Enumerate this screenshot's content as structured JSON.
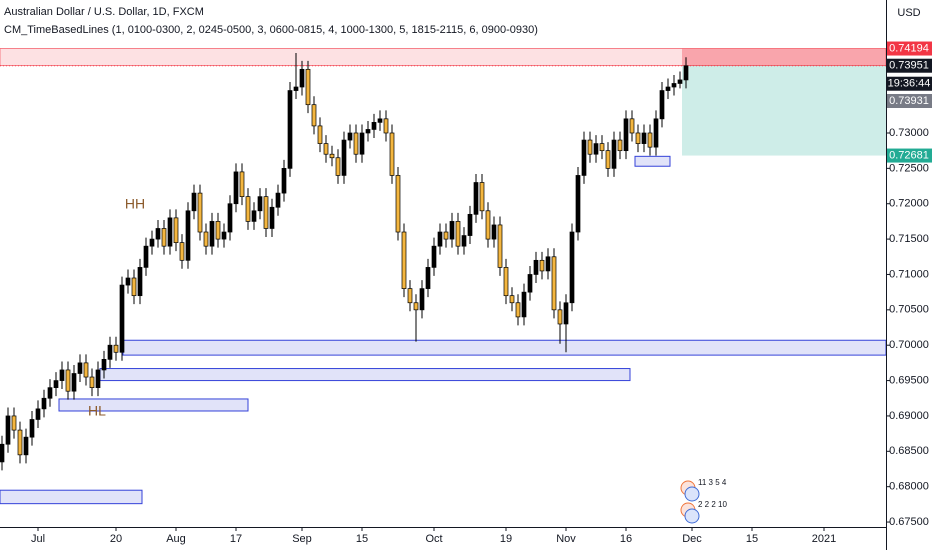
{
  "chart_data": {
    "type": "candlestick",
    "title": "Australian Dollar / U.S. Dollar, 1D, FXCM",
    "subtitle": "CM_TimeBasedLines (1, 0100-0300, 2, 0245-0500, 3, 0600-0815, 4, 1000-1300, 5, 1815-2115, 6, 0900-0930)",
    "currency": "USD",
    "categories": [
      null,
      null,
      null,
      null,
      null,
      null,
      "Jul",
      null,
      null,
      null,
      null,
      null,
      null,
      null,
      null,
      null,
      null,
      null,
      null,
      "20",
      null,
      null,
      null,
      null,
      null,
      null,
      null,
      null,
      null,
      "Aug",
      null,
      null,
      null,
      null,
      null,
      null,
      null,
      null,
      null,
      "17",
      null,
      null,
      null,
      null,
      null,
      null,
      null,
      null,
      null,
      null,
      "Sep",
      null,
      null,
      null,
      null,
      null,
      null,
      null,
      null,
      null,
      "15",
      null,
      null,
      null,
      null,
      null,
      null,
      null,
      null,
      null,
      null,
      null,
      "Oct",
      null,
      null,
      null,
      null,
      null,
      null,
      null,
      null,
      null,
      null,
      null,
      "19",
      null,
      null,
      null,
      null,
      null,
      null,
      null,
      null,
      null,
      "Nov",
      null,
      null,
      null,
      null,
      null,
      null,
      null,
      null,
      null,
      "16",
      null,
      null,
      null,
      null,
      null,
      null,
      null,
      null,
      null,
      null,
      "Dec",
      null,
      null,
      null,
      null,
      null,
      null,
      null,
      null,
      null,
      "15",
      null,
      null,
      null,
      null,
      null,
      null,
      null,
      null,
      null,
      null,
      null,
      "2021",
      null,
      null
    ],
    "open": [
      0.6835,
      0.686,
      0.69,
      0.688,
      0.6845,
      0.687,
      0.6895,
      0.691,
      0.6925,
      0.694,
      0.695,
      0.6965,
      0.6935,
      0.696,
      0.6975,
      0.6955,
      0.694,
      0.6965,
      0.698,
      0.7,
      0.699,
      0.7085,
      0.7095,
      0.707,
      0.711,
      0.714,
      0.715,
      0.7165,
      0.714,
      0.718,
      0.7145,
      0.712,
      0.719,
      0.7215,
      0.716,
      0.714,
      0.7175,
      0.715,
      0.716,
      0.72,
      0.7245,
      0.721,
      0.7175,
      0.719,
      0.721,
      0.7165,
      0.7195,
      0.7215,
      0.725,
      0.736,
      0.7365,
      0.739,
      0.734,
      0.731,
      0.7285,
      0.727,
      0.7265,
      0.724,
      0.729,
      0.73,
      0.727,
      0.73,
      0.7305,
      0.7315,
      0.732,
      0.73,
      0.724,
      0.716,
      0.708,
      0.706,
      0.705,
      0.708,
      0.711,
      0.714,
      0.716,
      0.715,
      0.7175,
      0.714,
      0.7155,
      0.7185,
      0.723,
      0.719,
      0.715,
      0.717,
      0.711,
      0.707,
      0.706,
      0.704,
      0.7075,
      0.71,
      0.712,
      0.7105,
      0.7125,
      0.705,
      0.703,
      0.706,
      0.716,
      0.724,
      0.729,
      0.727,
      0.7285,
      0.7275,
      0.725,
      0.729,
      0.7275,
      0.732,
      0.73,
      0.7285,
      0.73,
      0.728,
      0.732,
      0.736,
      0.7365,
      0.737,
      0.7375,
      null,
      null,
      null,
      null,
      null,
      null,
      null,
      null,
      null,
      null,
      null,
      null,
      null,
      null,
      null,
      null,
      null,
      null,
      null,
      null,
      null,
      null,
      null,
      null,
      null
    ],
    "high": [
      0.6872,
      0.6912,
      0.6912,
      0.6892,
      0.6882,
      0.6907,
      0.6922,
      0.6937,
      0.6952,
      0.6962,
      0.6977,
      0.6977,
      0.6972,
      0.6987,
      0.6987,
      0.6967,
      0.6977,
      0.6992,
      0.7012,
      0.7012,
      0.7097,
      0.7107,
      0.7107,
      0.7122,
      0.7152,
      0.7162,
      0.7177,
      0.7177,
      0.7192,
      0.7192,
      0.7157,
      0.7202,
      0.7227,
      0.7227,
      0.7172,
      0.7187,
      0.7187,
      0.7172,
      0.7212,
      0.7257,
      0.7257,
      0.7222,
      0.7202,
      0.7222,
      0.7222,
      0.7207,
      0.7227,
      0.7262,
      0.7372,
      0.7413,
      0.7402,
      0.7402,
      0.7352,
      0.7322,
      0.7297,
      0.7282,
      0.7277,
      0.7302,
      0.7312,
      0.7312,
      0.7312,
      0.7317,
      0.7327,
      0.7332,
      0.7332,
      0.7312,
      0.7252,
      0.7172,
      0.7092,
      0.7072,
      0.7092,
      0.7122,
      0.7152,
      0.7172,
      0.7172,
      0.7187,
      0.7187,
      0.7167,
      0.7197,
      0.7242,
      0.7242,
      0.7202,
      0.7182,
      0.7182,
      0.7122,
      0.7082,
      0.7072,
      0.7087,
      0.7112,
      0.7132,
      0.7132,
      0.7137,
      0.7137,
      0.7062,
      0.7072,
      0.7172,
      0.7252,
      0.7302,
      0.7302,
      0.7297,
      0.7297,
      0.7287,
      0.7302,
      0.7302,
      0.7332,
      0.7332,
      0.7312,
      0.7312,
      0.7312,
      0.7332,
      0.7372,
      0.7377,
      0.7382,
      0.7387,
      0.7407,
      null,
      null,
      null,
      null,
      null,
      null,
      null,
      null,
      null,
      null,
      null,
      null,
      null,
      null,
      null,
      null,
      null,
      null,
      null,
      null,
      null,
      null,
      null,
      null,
      null
    ],
    "low": [
      0.6823,
      0.6848,
      0.6868,
      0.6833,
      0.6833,
      0.6858,
      0.6883,
      0.6898,
      0.6913,
      0.6928,
      0.6938,
      0.6923,
      0.6923,
      0.6948,
      0.6943,
      0.6928,
      0.6928,
      0.6953,
      0.6968,
      0.6978,
      0.6978,
      0.7073,
      0.7058,
      0.7058,
      0.7098,
      0.7128,
      0.7138,
      0.7128,
      0.7128,
      0.7133,
      0.7108,
      0.7108,
      0.7178,
      0.7148,
      0.7128,
      0.7128,
      0.7138,
      0.7138,
      0.7148,
      0.7188,
      0.7198,
      0.7163,
      0.7163,
      0.7178,
      0.7153,
      0.7153,
      0.7183,
      0.7203,
      0.7238,
      0.7348,
      0.7353,
      0.7328,
      0.7298,
      0.7273,
      0.7258,
      0.7253,
      0.7228,
      0.7228,
      0.7278,
      0.7258,
      0.7258,
      0.7288,
      0.7293,
      0.7303,
      0.7288,
      0.7228,
      0.7148,
      0.7068,
      0.7048,
      0.7005,
      0.7038,
      0.7068,
      0.7098,
      0.7128,
      0.7138,
      0.7138,
      0.7128,
      0.7128,
      0.7143,
      0.7173,
      0.7178,
      0.7138,
      0.7138,
      0.7098,
      0.7058,
      0.7048,
      0.7028,
      0.7028,
      0.7063,
      0.7088,
      0.7093,
      0.7093,
      0.7038,
      0.7002,
      0.699,
      0.7048,
      0.7148,
      0.7228,
      0.7258,
      0.7258,
      0.7263,
      0.7238,
      0.7238,
      0.7263,
      0.7263,
      0.7288,
      0.7273,
      0.7273,
      0.7268,
      0.7268,
      0.7308,
      0.7348,
      0.7353,
      0.7363,
      0.7363,
      null,
      null,
      null,
      null,
      null,
      null,
      null,
      null,
      null,
      null,
      null,
      null,
      null,
      null,
      null,
      null,
      null,
      null,
      null,
      null,
      null,
      null,
      null,
      null,
      null
    ],
    "close": [
      0.686,
      0.69,
      0.688,
      0.6845,
      0.687,
      0.6895,
      0.691,
      0.6925,
      0.694,
      0.695,
      0.6965,
      0.6935,
      0.696,
      0.6975,
      0.6955,
      0.694,
      0.6965,
      0.698,
      0.7,
      0.699,
      0.7085,
      0.7095,
      0.707,
      0.711,
      0.714,
      0.715,
      0.7165,
      0.714,
      0.718,
      0.7145,
      0.712,
      0.719,
      0.7215,
      0.716,
      0.714,
      0.7175,
      0.715,
      0.716,
      0.72,
      0.7245,
      0.721,
      0.7175,
      0.719,
      0.721,
      0.7165,
      0.7195,
      0.7215,
      0.725,
      0.736,
      0.7365,
      0.739,
      0.734,
      0.731,
      0.7285,
      0.727,
      0.7265,
      0.724,
      0.729,
      0.73,
      0.727,
      0.73,
      0.7305,
      0.7315,
      0.732,
      0.73,
      0.724,
      0.716,
      0.708,
      0.706,
      0.705,
      0.708,
      0.711,
      0.714,
      0.716,
      0.715,
      0.7175,
      0.714,
      0.7155,
      0.7185,
      0.723,
      0.719,
      0.715,
      0.717,
      0.711,
      0.707,
      0.706,
      0.704,
      0.7075,
      0.71,
      0.712,
      0.7105,
      0.7125,
      0.705,
      0.703,
      0.706,
      0.716,
      0.724,
      0.729,
      0.727,
      0.7285,
      0.7275,
      0.725,
      0.729,
      0.7275,
      0.732,
      0.73,
      0.7285,
      0.73,
      0.728,
      0.732,
      0.736,
      0.7365,
      0.737,
      0.7375,
      0.7395,
      null,
      null,
      null,
      null,
      null,
      null,
      null,
      null,
      null,
      null,
      null,
      null,
      null,
      null,
      null,
      null,
      null,
      null,
      null,
      null,
      null,
      null,
      null,
      null,
      null
    ],
    "up_color": "#000000",
    "down_color": "#f4b63f",
    "ylim": [
      0.6743,
      0.7488
    ],
    "yticks": [
      {
        "value": 0.675,
        "label": "0.67500"
      },
      {
        "value": 0.68,
        "label": "0.68000"
      },
      {
        "value": 0.685,
        "label": "0.68500"
      },
      {
        "value": 0.69,
        "label": "0.69000"
      },
      {
        "value": 0.695,
        "label": "0.69500"
      },
      {
        "value": 0.7,
        "label": "0.70000"
      },
      {
        "value": 0.705,
        "label": "0.70500"
      },
      {
        "value": 0.71,
        "label": "0.71000"
      },
      {
        "value": 0.715,
        "label": "0.71500"
      },
      {
        "value": 0.72,
        "label": "0.72000"
      },
      {
        "value": 0.725,
        "label": "0.72500"
      },
      {
        "value": 0.73,
        "label": "0.73000"
      }
    ],
    "grid": false,
    "zones": [
      {
        "top": 0.7007,
        "bottom": 0.6986
      },
      {
        "top": 0.6967,
        "bottom": 0.695
      },
      {
        "top": 0.6924,
        "bottom": 0.6907
      },
      {
        "top": 0.6795,
        "bottom": 0.6776
      },
      {
        "top": 0.7267,
        "bottom": 0.7253
      }
    ],
    "zone_color": "#3442d9",
    "annotations": [
      {
        "text": "HH"
      },
      {
        "text": "HL"
      }
    ],
    "annotation_color": "#8b5a2b",
    "price_tags": [
      {
        "value": 0.74194,
        "label": "0.74194",
        "color": "#f23645"
      },
      {
        "value": 0.73951,
        "label": "0.73951",
        "color": "#131722"
      },
      {
        "value": 0.73931,
        "label": "0.73931",
        "color": "#787b86"
      },
      {
        "value": 0.72681,
        "label": "0.72681",
        "color": "#22ab94"
      }
    ],
    "countdown": "19:36:44",
    "events": [
      "11 3 5 4",
      "2 2 2 10"
    ]
  }
}
